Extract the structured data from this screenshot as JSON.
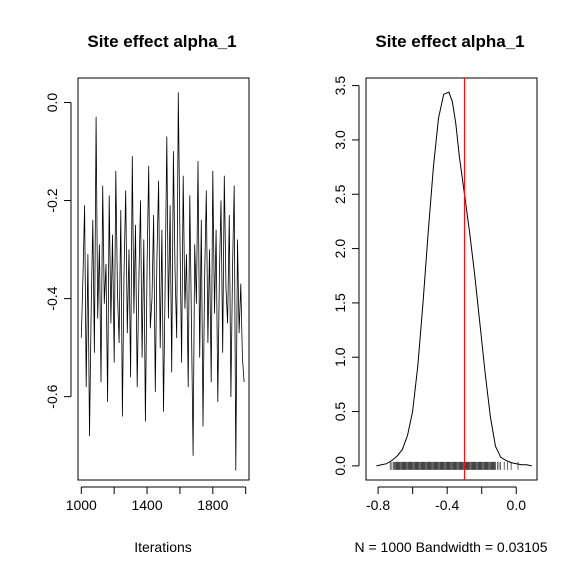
{
  "chart_data": [
    {
      "type": "line",
      "title": "Site effect alpha_1",
      "xlabel": "Iterations",
      "ylabel": "",
      "xlim": [
        980,
        2020
      ],
      "ylim": [
        -0.77,
        0.05
      ],
      "x_ticks": [
        1000,
        1200,
        1400,
        1600,
        1800,
        2000
      ],
      "x_tick_labels": [
        "1000",
        "",
        "1400",
        "",
        "1800",
        ""
      ],
      "y_ticks": [
        0.0,
        -0.2,
        -0.4,
        -0.6
      ],
      "y_tick_labels": [
        "0.0",
        "-0.2",
        "-0.4",
        "-0.6"
      ],
      "series": [
        {
          "x_start": 1000,
          "x_step": 10,
          "values": [
            -0.48,
            -0.36,
            -0.21,
            -0.58,
            -0.31,
            -0.68,
            -0.42,
            -0.24,
            -0.51,
            -0.03,
            -0.44,
            -0.29,
            -0.57,
            -0.17,
            -0.41,
            -0.33,
            -0.61,
            -0.19,
            -0.45,
            -0.27,
            -0.53,
            -0.14,
            -0.39,
            -0.49,
            -0.22,
            -0.64,
            -0.35,
            -0.18,
            -0.47,
            -0.3,
            -0.56,
            -0.11,
            -0.43,
            -0.25,
            -0.58,
            -0.37,
            -0.2,
            -0.52,
            -0.28,
            -0.65,
            -0.33,
            -0.13,
            -0.46,
            -0.4,
            -0.23,
            -0.59,
            -0.32,
            -0.16,
            -0.5,
            -0.26,
            -0.63,
            -0.38,
            -0.07,
            -0.44,
            -0.21,
            -0.55,
            -0.1,
            -0.34,
            -0.48,
            0.02,
            -0.27,
            -0.53,
            -0.15,
            -0.42,
            -0.31,
            -0.58,
            -0.19,
            -0.46,
            -0.72,
            -0.29,
            -0.41,
            -0.12,
            -0.52,
            -0.24,
            -0.66,
            -0.36,
            -0.18,
            -0.49,
            -0.3,
            -0.57,
            -0.14,
            -0.43,
            -0.26,
            -0.61,
            -0.35,
            -0.2,
            -0.51,
            -0.15,
            -0.38,
            -0.45,
            -0.23,
            -0.6,
            -0.33,
            -0.17,
            -0.75,
            -0.28,
            -0.47,
            -0.37,
            -0.52,
            -0.57
          ]
        }
      ]
    },
    {
      "type": "line",
      "title": "Site effect alpha_1",
      "xlabel": "N = 1000   Bandwidth = 0.03105",
      "ylabel": "",
      "xlim": [
        -0.87,
        0.12
      ],
      "ylim": [
        -0.13,
        3.57
      ],
      "x_ticks": [
        -0.8,
        -0.6,
        -0.4,
        -0.2,
        0.0
      ],
      "x_tick_labels": [
        "-0.8",
        "",
        "-0.4",
        "",
        "0.0"
      ],
      "y_ticks": [
        0.0,
        0.5,
        1.0,
        1.5,
        2.0,
        2.5,
        3.0,
        3.5
      ],
      "y_tick_labels": [
        "0.0",
        "0.5",
        "1.0",
        "1.5",
        "2.0",
        "2.5",
        "3.0",
        "3.5"
      ],
      "reference_line": {
        "x": -0.3,
        "color": "#ff0000"
      },
      "series": [
        {
          "x": [
            -0.81,
            -0.78,
            -0.75,
            -0.72,
            -0.69,
            -0.66,
            -0.63,
            -0.6,
            -0.57,
            -0.54,
            -0.51,
            -0.48,
            -0.45,
            -0.42,
            -0.39,
            -0.37,
            -0.35,
            -0.33,
            -0.3,
            -0.27,
            -0.24,
            -0.21,
            -0.18,
            -0.15,
            -0.12,
            -0.09,
            -0.06,
            -0.03,
            0.0,
            0.03,
            0.06,
            0.09
          ],
          "values": [
            0.0,
            0.01,
            0.02,
            0.05,
            0.09,
            0.15,
            0.28,
            0.5,
            0.92,
            1.5,
            2.15,
            2.75,
            3.2,
            3.42,
            3.44,
            3.35,
            3.15,
            2.85,
            2.5,
            2.15,
            1.75,
            1.3,
            0.85,
            0.45,
            0.18,
            0.08,
            0.05,
            0.03,
            0.02,
            0.01,
            0.01,
            0.0
          ],
          "color": "#000000"
        }
      ],
      "rug": {
        "x_start": -0.71,
        "x_end": -0.12,
        "x_step": 0.005,
        "extra": [
          -0.73,
          -0.72,
          -0.11,
          -0.1,
          -0.09,
          -0.07,
          -0.05,
          -0.03,
          0.01
        ]
      }
    }
  ]
}
